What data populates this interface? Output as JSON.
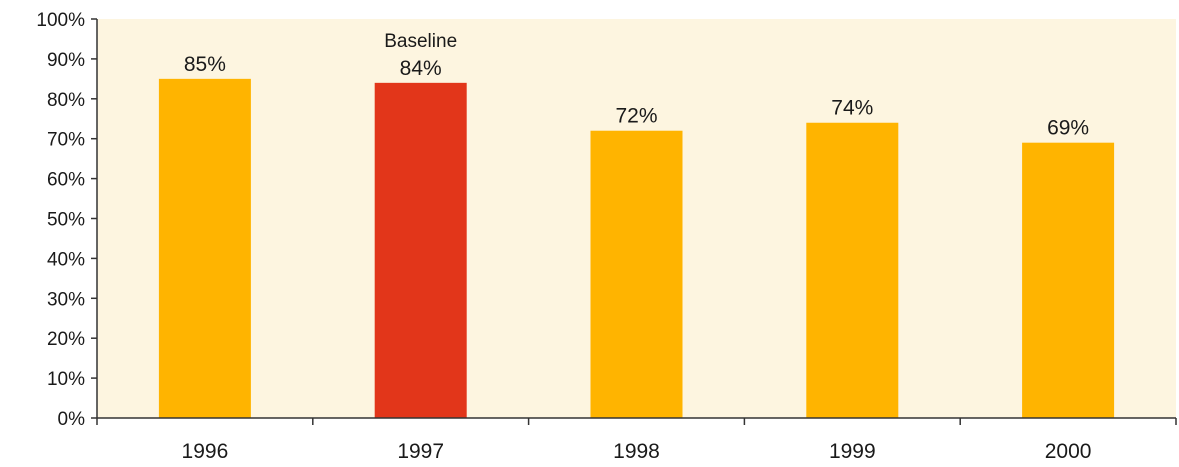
{
  "chart_data": {
    "type": "bar",
    "categories": [
      "1996",
      "1997",
      "1998",
      "1999",
      "2000"
    ],
    "values": [
      85,
      84,
      72,
      74,
      69
    ],
    "value_labels": [
      "85%",
      "84%",
      "72%",
      "74%",
      "69%"
    ],
    "ylim": [
      0,
      100
    ],
    "y_ticks": [
      0,
      10,
      20,
      30,
      40,
      50,
      60,
      70,
      80,
      90,
      100
    ],
    "y_tick_labels": [
      "0%",
      "10%",
      "20%",
      "30%",
      "40%",
      "50%",
      "60%",
      "70%",
      "80%",
      "90%",
      "100%"
    ],
    "annotations": [
      {
        "category": "1997",
        "text": "Baseline"
      }
    ],
    "highlight_category": "1997",
    "grid": false,
    "legend": "none",
    "colors": {
      "bar": "#FFB400",
      "highlight": "#E2361A",
      "plot_background": "#FDF5E0",
      "axis": "#333333"
    }
  }
}
